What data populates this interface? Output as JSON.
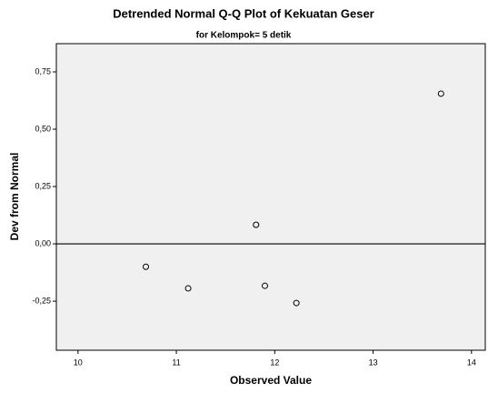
{
  "chart_data": {
    "type": "scatter",
    "title": "Detrended Normal Q-Q Plot of Kekuatan Geser",
    "subtitle": "for Kelompok= 5 detik",
    "x_label": "Observed Value",
    "y_label": "Dev from Normal",
    "x": [
      10.69,
      11.12,
      11.81,
      11.9,
      12.22,
      13.69
    ],
    "values": [
      -0.1,
      -0.194,
      0.083,
      -0.183,
      -0.258,
      0.655
    ],
    "xlim": [
      9.78,
      14.14
    ],
    "ylim": [
      -0.464,
      0.873
    ],
    "xticks": [
      10,
      11,
      12,
      13,
      14
    ],
    "yticks": [
      {
        "value": -0.25,
        "label": "-0,25"
      },
      {
        "value": 0,
        "label": "0,00"
      },
      {
        "value": 0.25,
        "label": "0,25"
      },
      {
        "value": 0.5,
        "label": "0,50"
      },
      {
        "value": 0.75,
        "label": "0,75"
      }
    ],
    "reference_line": 0,
    "color": "#000000",
    "background": "#f0f0f0"
  }
}
